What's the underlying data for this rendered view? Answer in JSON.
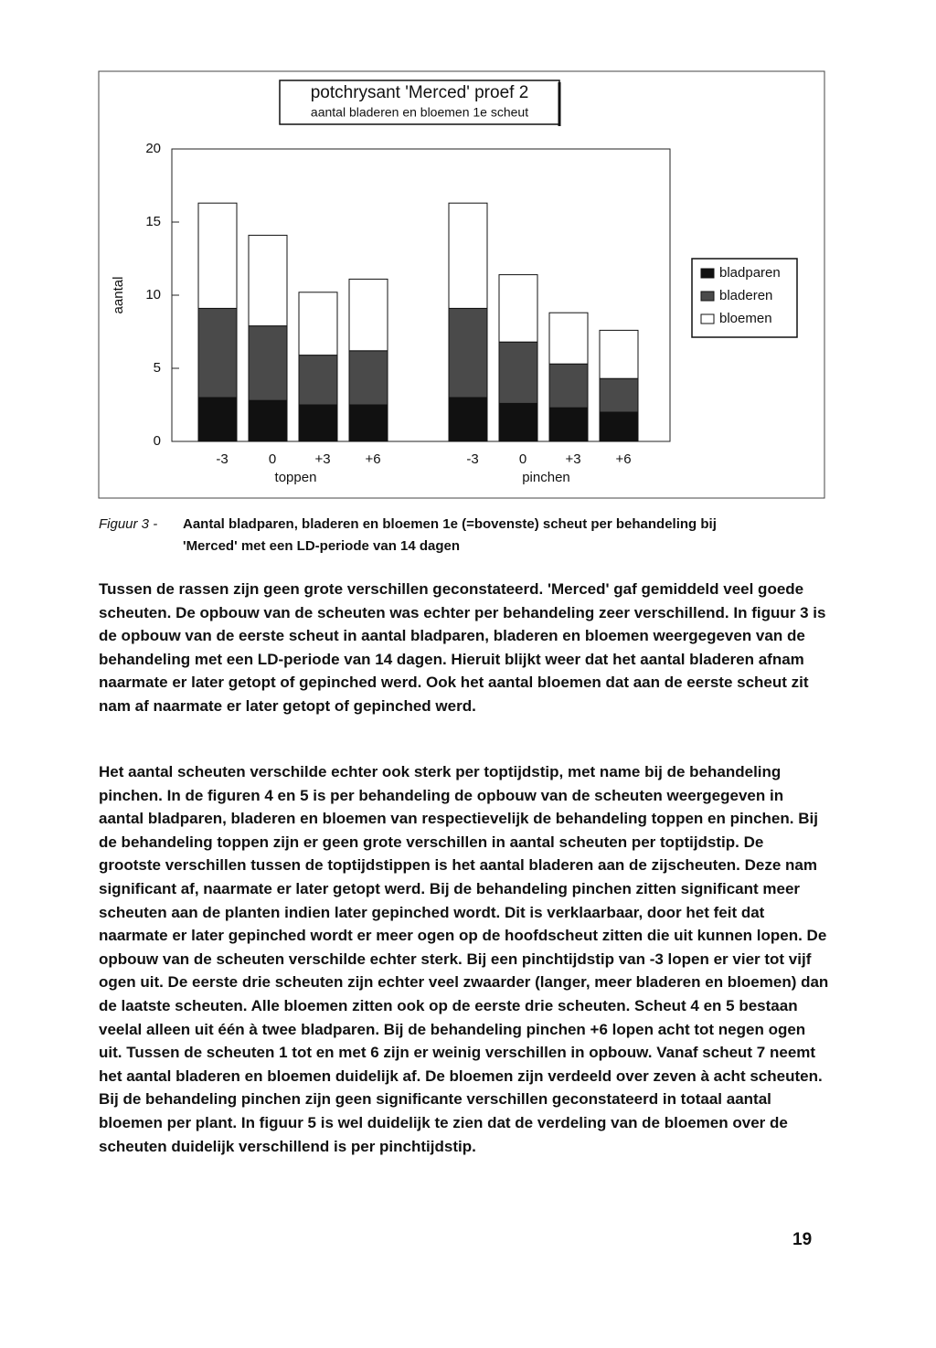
{
  "chart_data": {
    "type": "bar",
    "stacked": true,
    "title": "potchrysant 'Merced' proef 2",
    "subtitle": "aantal bladeren en bloemen 1e scheut",
    "y_label": "aantal",
    "categories": [
      "-3",
      "0",
      "+3",
      "+6",
      "-3",
      "0",
      "+3",
      "+6"
    ],
    "groups": [
      "toppen",
      "pinchen"
    ],
    "series": [
      {
        "name": "bladparen",
        "color": "#111111",
        "values": [
          3.0,
          2.8,
          2.5,
          2.5,
          3.0,
          2.6,
          2.3,
          2.0
        ]
      },
      {
        "name": "bladeren",
        "color": "#4a4a4a",
        "values": [
          6.1,
          5.1,
          3.4,
          3.7,
          6.1,
          4.2,
          3.0,
          2.3
        ]
      },
      {
        "name": "bloemen",
        "color": "#ffffff",
        "values": [
          7.2,
          6.2,
          4.3,
          4.9,
          7.2,
          4.6,
          3.5,
          3.3
        ]
      }
    ],
    "ylim": [
      0,
      20
    ],
    "yticks": [
      0,
      5,
      10,
      15,
      20
    ],
    "legend": "right"
  },
  "caption": {
    "label": "Figuur 3 -",
    "text": [
      "Aantal bladparen, bladeren en bloemen 1e (=bovenste) scheut per behandeling bij",
      "'Merced' met een LD-periode van 14 dagen"
    ]
  },
  "paragraphs": [
    "Tussen de rassen zijn geen grote verschillen geconstateerd. 'Merced' gaf gemiddeld veel goede scheuten. De opbouw van de scheuten was echter per behandeling zeer verschillend. In figuur 3 is de opbouw van de eerste scheut in aantal bladparen, bladeren en bloemen weergegeven van de behandeling met een LD-periode van 14 dagen. Hieruit blijkt weer dat het aantal bladeren afnam naarmate er later getopt of gepinched werd. Ook het aantal bloemen dat aan de eerste scheut zit nam af naarmate er later getopt of gepinched werd.",
    "Het aantal scheuten verschilde echter ook sterk per toptijdstip, met name bij de behandeling pinchen. In de figuren 4 en 5 is per behandeling de opbouw van de scheuten weergegeven in aantal bladparen, bladeren en bloemen van respectievelijk de behandeling toppen en pinchen. Bij de behandeling toppen zijn er geen grote verschillen in aantal scheuten per toptijdstip. De grootste verschillen tussen de toptijdstippen is het aantal bladeren aan de zijscheuten. Deze nam significant af, naarmate er later getopt werd. Bij de behandeling pinchen zitten significant meer scheuten aan de planten indien later gepinched wordt. Dit is verklaarbaar, door het feit dat naarmate er later gepinched wordt er meer ogen op de hoofdscheut zitten die uit kunnen lopen. De opbouw van de scheuten verschilde echter sterk. Bij een pinchtijdstip van -3 lopen er vier tot vijf ogen uit. De eerste drie scheuten zijn echter veel zwaarder (langer, meer bladeren en bloemen) dan de laatste scheuten. Alle bloemen zitten ook op de eerste drie scheuten. Scheut 4 en 5 bestaan veelal alleen uit één à twee bladparen. Bij de behandeling pinchen +6 lopen acht tot negen ogen uit. Tussen de scheuten 1 tot en met 6 zijn er weinig verschillen in opbouw. Vanaf scheut 7 neemt het aantal bladeren en bloemen duidelijk af. De bloemen zijn verdeeld over zeven à acht scheuten. Bij de behandeling pinchen zijn geen significante verschillen geconstateerd in totaal aantal bloemen per plant. In figuur 5 is wel duidelijk te zien dat de verdeling van de bloemen over de scheuten duidelijk verschillend is per pinchtijdstip."
  ],
  "page_number": "19"
}
